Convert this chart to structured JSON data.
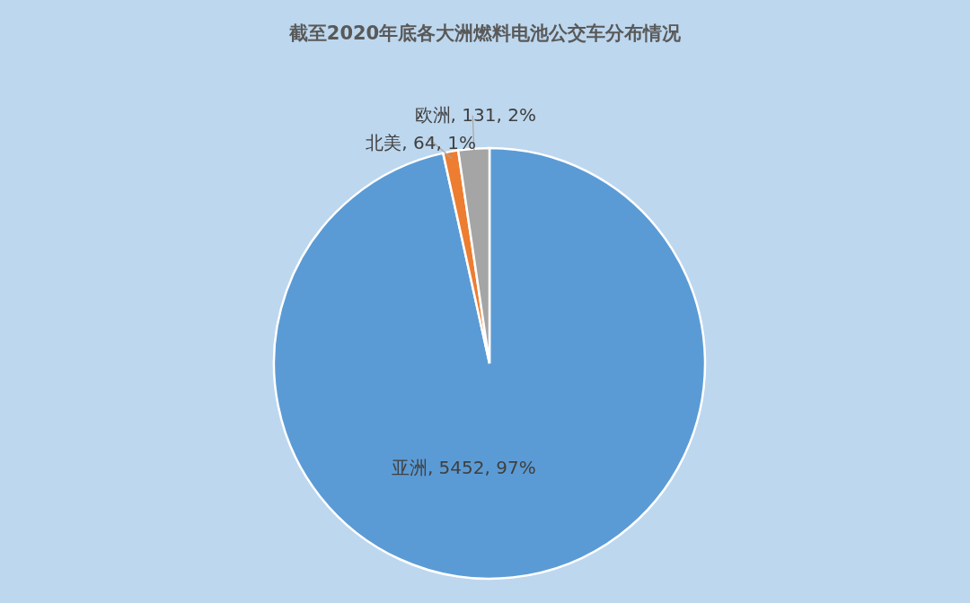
{
  "chart_data": {
    "type": "pie",
    "title": "截至2020年底各大洲燃料电池公交车分布情况",
    "categories": [
      "亚洲",
      "北美",
      "欧洲"
    ],
    "values": [
      5452,
      64,
      131
    ],
    "colors": [
      "#5b9bd5",
      "#ed7d31",
      "#a5a5a5"
    ],
    "value_labels": [
      "5452, 97%",
      "64, 1%",
      "131, 2%"
    ]
  }
}
